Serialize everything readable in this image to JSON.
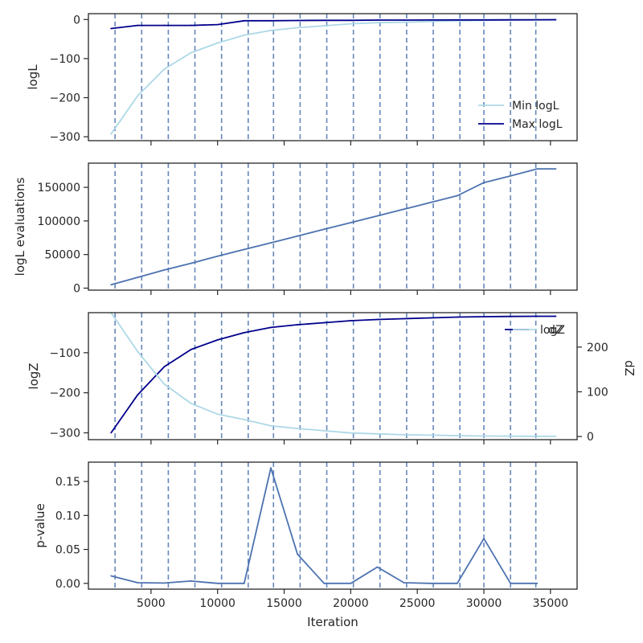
{
  "chart_data": [
    {
      "type": "line",
      "panel": "logL",
      "ylabel": "logL",
      "xlim": [
        300,
        37000
      ],
      "ylim": [
        -310,
        15
      ],
      "yticks": [
        0,
        -100,
        -200,
        -300
      ],
      "ytick_labels": [
        "0",
        "−100",
        "−200",
        "−300"
      ],
      "grid": false,
      "legend_position": "lower-right",
      "legend": [
        "Min logL",
        "Max logL"
      ],
      "series": [
        {
          "name": "Min logL",
          "color": "#add8e6",
          "x": [
            2000,
            4000,
            6000,
            8000,
            10000,
            12000,
            14000,
            16000,
            18000,
            20000,
            22000,
            24000,
            26000,
            28000,
            30000,
            32000,
            34000,
            35400
          ],
          "y": [
            -293,
            -195,
            -127,
            -85,
            -60,
            -40,
            -28,
            -21,
            -16,
            -11,
            -8,
            -7,
            -5,
            -3,
            -2,
            -1.5,
            -1,
            -1
          ]
        },
        {
          "name": "Max logL",
          "color": "#00008b",
          "x": [
            2000,
            4000,
            6000,
            8000,
            10000,
            12000,
            14000,
            16000,
            18000,
            20000,
            22000,
            24000,
            26000,
            28000,
            30000,
            32000,
            34000,
            35400
          ],
          "y": [
            -23,
            -15,
            -15,
            -15,
            -13,
            -3,
            -3,
            -2.5,
            -2,
            -2,
            -1.5,
            -1.5,
            -1.2,
            -1,
            -1,
            -0.8,
            -0.6,
            -0.5
          ]
        }
      ],
      "vlines": [
        2300,
        4300,
        6300,
        8300,
        10300,
        12300,
        14200,
        16200,
        18200,
        20200,
        22200,
        24200,
        26200,
        28200,
        30000,
        32000,
        33900
      ]
    },
    {
      "type": "line",
      "panel": "logL evaluations",
      "ylabel": "logL evaluations",
      "xlim": [
        300,
        37000
      ],
      "ylim": [
        -3000,
        186000
      ],
      "yticks": [
        0,
        50000,
        100000,
        150000
      ],
      "ytick_labels": [
        "0",
        "50000",
        "100000",
        "150000"
      ],
      "grid": false,
      "series": [
        {
          "color": "#4c72b0",
          "x": [
            2000,
            4000,
            6000,
            8000,
            10000,
            12000,
            14000,
            16000,
            18000,
            20000,
            22000,
            24000,
            26000,
            28000,
            30000,
            32000,
            34000,
            35400
          ],
          "y": [
            5000,
            16000,
            27000,
            37000,
            47500,
            57500,
            67500,
            77500,
            87500,
            97500,
            107500,
            117500,
            127500,
            137500,
            157000,
            167000,
            177500,
            177500
          ]
        }
      ],
      "vlines": [
        2300,
        4300,
        6300,
        8300,
        10300,
        12300,
        14200,
        16200,
        18200,
        20200,
        22200,
        24200,
        26200,
        28200,
        30000,
        32000,
        33900
      ]
    },
    {
      "type": "line",
      "panel": "logZ / dZ",
      "ylabel": "logZ",
      "y2label": "dZ",
      "xlim": [
        300,
        37000
      ],
      "ylim": [
        -317,
        0
      ],
      "yticks": [
        -100,
        -200,
        -300
      ],
      "ytick_labels": [
        "−100",
        "−200",
        "−300"
      ],
      "y2lim": [
        -7,
        277
      ],
      "y2ticks": [
        0,
        100,
        200
      ],
      "y2tick_labels": [
        "0",
        "100",
        "200"
      ],
      "grid": false,
      "legend_position": "upper-right",
      "legend": [
        "logZ",
        "dZ"
      ],
      "series": [
        {
          "name": "logZ",
          "color": "#00008b",
          "axis": "left",
          "x": [
            2000,
            4000,
            6000,
            8000,
            10000,
            12000,
            14000,
            16000,
            18000,
            20000,
            22000,
            24000,
            26000,
            28000,
            30000,
            32000,
            34000,
            35400
          ],
          "y": [
            -300,
            -205,
            -135,
            -92,
            -68,
            -50,
            -37,
            -30,
            -25,
            -20,
            -17,
            -15,
            -13,
            -11,
            -10,
            -9.5,
            -9,
            -9
          ]
        },
        {
          "name": "dZ",
          "color": "#add8e6",
          "axis": "right",
          "x": [
            2000,
            4000,
            6000,
            8000,
            10000,
            12000,
            14000,
            16000,
            18000,
            20000,
            22000,
            24000,
            26000,
            28000,
            30000,
            32000,
            34000,
            35400
          ],
          "y": [
            277,
            190,
            117,
            74,
            50,
            38,
            24,
            18,
            13,
            8,
            6,
            4,
            3,
            2,
            1,
            0.8,
            0.5,
            0.3
          ]
        }
      ],
      "vlines": [
        2300,
        4300,
        6300,
        8300,
        10300,
        12300,
        14200,
        16200,
        18200,
        20200,
        22200,
        24200,
        26200,
        28200,
        30000,
        32000,
        33900
      ]
    },
    {
      "type": "line",
      "panel": "p-value",
      "ylabel": "p-value",
      "xlabel": "Iteration",
      "xlim": [
        300,
        37000
      ],
      "ylim": [
        -0.0085,
        0.1785
      ],
      "yticks": [
        0.0,
        0.05,
        0.1,
        0.15
      ],
      "ytick_labels": [
        "0.00",
        "0.05",
        "0.10",
        "0.15"
      ],
      "xticks": [
        5000,
        10000,
        15000,
        20000,
        25000,
        30000,
        35000
      ],
      "xtick_labels": [
        "5000",
        "10000",
        "15000",
        "20000",
        "25000",
        "30000",
        "35000"
      ],
      "grid": false,
      "series": [
        {
          "color": "#4c72b0",
          "x": [
            2000,
            4000,
            6000,
            8000,
            10000,
            12000,
            14000,
            16000,
            18000,
            20000,
            22000,
            24000,
            26000,
            28000,
            30000,
            32000,
            34000
          ],
          "y": [
            0.011,
            0.001,
            0.0005,
            0.0035,
            0.0,
            0.0,
            0.17,
            0.043,
            0.0,
            0.0,
            0.024,
            0.001,
            0.0,
            0.0,
            0.066,
            0.0,
            0.0
          ]
        }
      ],
      "vlines": [
        2300,
        4300,
        6300,
        8300,
        10300,
        12300,
        14200,
        16200,
        18200,
        20200,
        22200,
        24200,
        26200,
        28200,
        30000,
        32000,
        33900
      ]
    }
  ]
}
